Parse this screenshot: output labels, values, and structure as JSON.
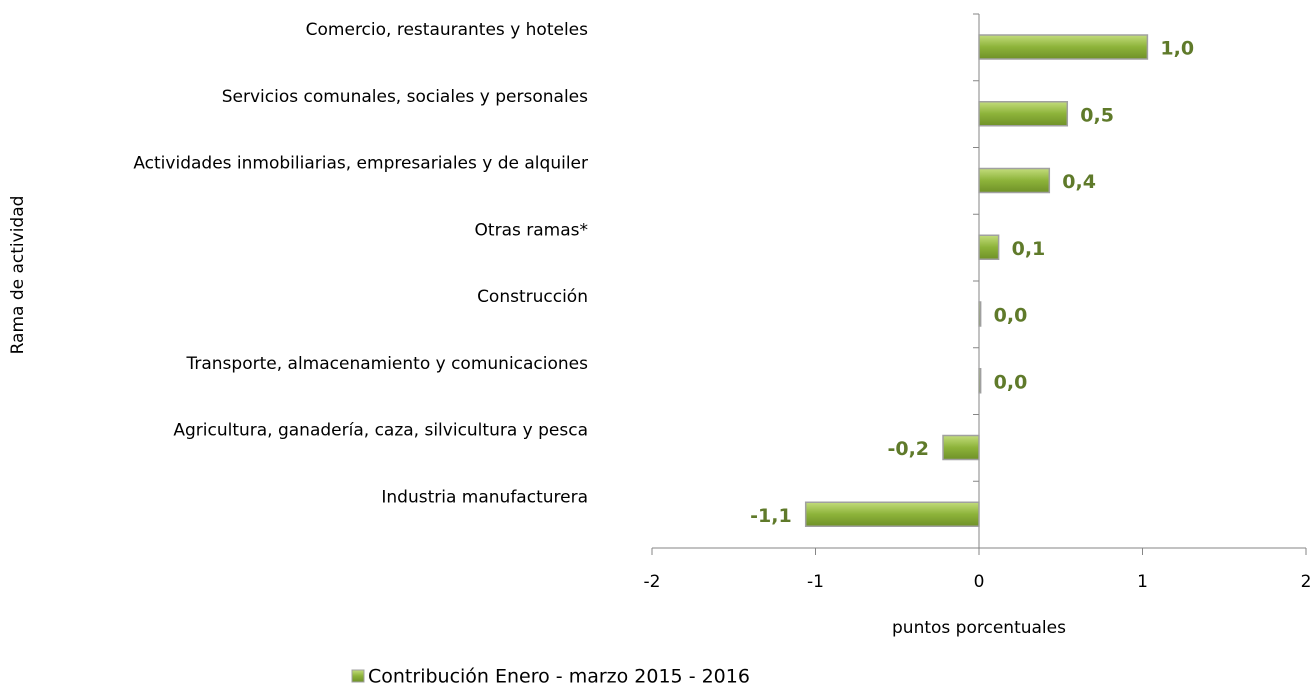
{
  "chart_data": {
    "type": "hbar",
    "categories": [
      "Comercio, restaurantes y hoteles",
      "Servicios comunales, sociales y personales",
      "Actividades inmobiliarias, empresariales y de alquiler",
      "Otras ramas*",
      "Construcción",
      "Transporte, almacenamiento y comunicaciones",
      "Agricultura, ganadería, caza, silvicultura y pesca",
      "Industria manufacturera"
    ],
    "series": [
      {
        "name": "Contribución Enero - marzo 2015 - 2016",
        "color": "#8db33a",
        "values": [
          1.03,
          0.54,
          0.43,
          0.12,
          0.01,
          0.01,
          -0.22,
          -1.06
        ],
        "value_labels": [
          "1,0",
          "0,5",
          "0,4",
          "0,1",
          "0,0",
          "0,0",
          "-0,2",
          "-1,1"
        ]
      }
    ],
    "xlim": [
      -2,
      2
    ],
    "xticks": [
      -2,
      -1,
      0,
      1,
      2
    ],
    "x_label": "puntos porcentuales",
    "y_label": "Rama de actividad",
    "legend": "bottom"
  }
}
